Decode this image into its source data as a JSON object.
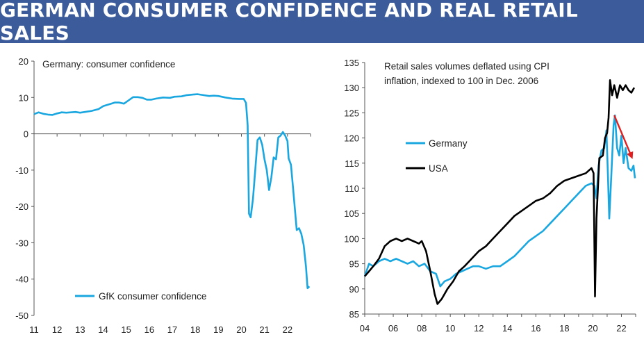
{
  "title": "GERMAN CONSUMER CONFIDENCE AND REAL RETAIL SALES",
  "colors": {
    "banner": "#3b5b9a",
    "germany": "#1aa7e0",
    "usa": "#000000",
    "arrow": "#e02020"
  },
  "chart_data": [
    {
      "type": "line",
      "annotation": "Germany: consumer confidence",
      "ylim": [
        -50,
        20
      ],
      "yticks": [
        "20",
        "10",
        "0",
        "-10",
        "-20",
        "-30",
        "-40",
        "-50"
      ],
      "xlim": [
        2011,
        2023
      ],
      "xticks": [
        "11",
        "12",
        "13",
        "14",
        "15",
        "16",
        "17",
        "18",
        "19",
        "20",
        "21",
        "22"
      ],
      "legend_position": "bottom-center",
      "series": [
        {
          "name": "GfK consumer confidence",
          "color": "#1aa7e0",
          "points": [
            [
              2011.0,
              5.4
            ],
            [
              2011.2,
              5.9
            ],
            [
              2011.4,
              5.5
            ],
            [
              2011.6,
              5.3
            ],
            [
              2011.8,
              5.2
            ],
            [
              2012.0,
              5.6
            ],
            [
              2012.2,
              5.9
            ],
            [
              2012.4,
              5.8
            ],
            [
              2012.6,
              5.9
            ],
            [
              2012.8,
              6.0
            ],
            [
              2013.0,
              5.8
            ],
            [
              2013.2,
              6.0
            ],
            [
              2013.5,
              6.3
            ],
            [
              2013.8,
              6.8
            ],
            [
              2014.0,
              7.6
            ],
            [
              2014.3,
              8.2
            ],
            [
              2014.5,
              8.6
            ],
            [
              2014.7,
              8.6
            ],
            [
              2014.9,
              8.3
            ],
            [
              2015.1,
              9.2
            ],
            [
              2015.3,
              10.1
            ],
            [
              2015.5,
              10.1
            ],
            [
              2015.7,
              9.9
            ],
            [
              2015.9,
              9.4
            ],
            [
              2016.1,
              9.4
            ],
            [
              2016.3,
              9.7
            ],
            [
              2016.6,
              10.0
            ],
            [
              2016.9,
              9.9
            ],
            [
              2017.1,
              10.2
            ],
            [
              2017.4,
              10.3
            ],
            [
              2017.6,
              10.6
            ],
            [
              2017.9,
              10.8
            ],
            [
              2018.1,
              10.9
            ],
            [
              2018.3,
              10.7
            ],
            [
              2018.6,
              10.4
            ],
            [
              2018.8,
              10.5
            ],
            [
              2019.0,
              10.4
            ],
            [
              2019.3,
              10.0
            ],
            [
              2019.6,
              9.7
            ],
            [
              2019.9,
              9.6
            ],
            [
              2020.1,
              9.6
            ],
            [
              2020.2,
              8.5
            ],
            [
              2020.27,
              2.3
            ],
            [
              2020.33,
              -22.0
            ],
            [
              2020.4,
              -23.0
            ],
            [
              2020.5,
              -18.0
            ],
            [
              2020.6,
              -10.0
            ],
            [
              2020.7,
              -1.7
            ],
            [
              2020.8,
              -1.0
            ],
            [
              2020.9,
              -3.0
            ],
            [
              2021.0,
              -7.0
            ],
            [
              2021.1,
              -10.0
            ],
            [
              2021.2,
              -15.5
            ],
            [
              2021.3,
              -12.0
            ],
            [
              2021.4,
              -6.5
            ],
            [
              2021.5,
              -7.0
            ],
            [
              2021.6,
              -1.0
            ],
            [
              2021.7,
              -0.5
            ],
            [
              2021.8,
              0.5
            ],
            [
              2021.9,
              -0.5
            ],
            [
              2022.0,
              -2.0
            ],
            [
              2022.05,
              -6.8
            ],
            [
              2022.15,
              -8.5
            ],
            [
              2022.25,
              -15.5
            ],
            [
              2022.4,
              -26.5
            ],
            [
              2022.5,
              -26.0
            ],
            [
              2022.6,
              -27.5
            ],
            [
              2022.7,
              -30.6
            ],
            [
              2022.8,
              -36.5
            ],
            [
              2022.87,
              -42.5
            ],
            [
              2022.95,
              -42.0
            ]
          ]
        }
      ]
    },
    {
      "type": "line",
      "annotation": "Retail sales volumes deflated using CPI inflation, indexed to 100 in Dec. 2006",
      "ylim": [
        85,
        135
      ],
      "yticks": [
        "135",
        "130",
        "125",
        "120",
        "115",
        "110",
        "105",
        "100",
        "95",
        "90",
        "85"
      ],
      "xlim": [
        2004,
        2023
      ],
      "xticks": [
        "04",
        "06",
        "08",
        "10",
        "12",
        "14",
        "16",
        "18",
        "20",
        "22"
      ],
      "legend_position": "middle-left",
      "series": [
        {
          "name": "Germany",
          "color": "#1aa7e0",
          "points": [
            [
              2004.0,
              92.5
            ],
            [
              2004.3,
              95.0
            ],
            [
              2004.6,
              94.5
            ],
            [
              2005.0,
              95.5
            ],
            [
              2005.4,
              96.0
            ],
            [
              2005.8,
              95.5
            ],
            [
              2006.2,
              96.0
            ],
            [
              2006.6,
              95.5
            ],
            [
              2007.0,
              95.0
            ],
            [
              2007.4,
              95.5
            ],
            [
              2007.8,
              94.5
            ],
            [
              2008.2,
              95.0
            ],
            [
              2008.6,
              93.5
            ],
            [
              2009.0,
              93.0
            ],
            [
              2009.3,
              90.5
            ],
            [
              2009.6,
              91.5
            ],
            [
              2010.0,
              92.0
            ],
            [
              2010.4,
              93.0
            ],
            [
              2010.8,
              93.5
            ],
            [
              2011.2,
              94.0
            ],
            [
              2011.6,
              94.5
            ],
            [
              2012.0,
              94.5
            ],
            [
              2012.5,
              94.0
            ],
            [
              2013.0,
              94.5
            ],
            [
              2013.5,
              94.5
            ],
            [
              2014.0,
              95.5
            ],
            [
              2014.5,
              96.5
            ],
            [
              2015.0,
              98.0
            ],
            [
              2015.5,
              99.5
            ],
            [
              2016.0,
              100.5
            ],
            [
              2016.5,
              101.5
            ],
            [
              2017.0,
              103.0
            ],
            [
              2017.5,
              104.5
            ],
            [
              2018.0,
              106.0
            ],
            [
              2018.5,
              107.5
            ],
            [
              2019.0,
              109.0
            ],
            [
              2019.5,
              110.5
            ],
            [
              2019.9,
              111.0
            ],
            [
              2020.1,
              110.5
            ],
            [
              2020.25,
              108.0
            ],
            [
              2020.4,
              114.5
            ],
            [
              2020.6,
              117.5
            ],
            [
              2020.8,
              118.0
            ],
            [
              2020.95,
              121.5
            ],
            [
              2021.05,
              113.0
            ],
            [
              2021.15,
              104.0
            ],
            [
              2021.3,
              113.0
            ],
            [
              2021.45,
              122.5
            ],
            [
              2021.55,
              124.5
            ],
            [
              2021.7,
              118.0
            ],
            [
              2021.85,
              116.5
            ],
            [
              2022.0,
              120.5
            ],
            [
              2022.15,
              115.0
            ],
            [
              2022.3,
              118.0
            ],
            [
              2022.5,
              114.0
            ],
            [
              2022.7,
              113.5
            ],
            [
              2022.85,
              114.5
            ],
            [
              2022.95,
              112.0
            ]
          ]
        },
        {
          "name": "USA",
          "color": "#000000",
          "points": [
            [
              2004.0,
              92.5
            ],
            [
              2004.3,
              93.5
            ],
            [
              2004.6,
              94.5
            ],
            [
              2005.0,
              96.0
            ],
            [
              2005.4,
              98.5
            ],
            [
              2005.8,
              99.5
            ],
            [
              2006.2,
              100.0
            ],
            [
              2006.6,
              99.5
            ],
            [
              2007.0,
              100.0
            ],
            [
              2007.4,
              99.5
            ],
            [
              2007.8,
              99.0
            ],
            [
              2008.0,
              99.5
            ],
            [
              2008.3,
              97.5
            ],
            [
              2008.6,
              93.5
            ],
            [
              2008.9,
              89.0
            ],
            [
              2009.1,
              87.0
            ],
            [
              2009.4,
              88.0
            ],
            [
              2009.8,
              90.0
            ],
            [
              2010.2,
              91.5
            ],
            [
              2010.6,
              93.5
            ],
            [
              2011.0,
              94.5
            ],
            [
              2011.5,
              96.0
            ],
            [
              2012.0,
              97.5
            ],
            [
              2012.5,
              98.5
            ],
            [
              2013.0,
              100.0
            ],
            [
              2013.5,
              101.5
            ],
            [
              2014.0,
              103.0
            ],
            [
              2014.5,
              104.5
            ],
            [
              2015.0,
              105.5
            ],
            [
              2015.5,
              106.5
            ],
            [
              2016.0,
              107.5
            ],
            [
              2016.5,
              108.0
            ],
            [
              2017.0,
              109.0
            ],
            [
              2017.5,
              110.5
            ],
            [
              2018.0,
              111.5
            ],
            [
              2018.5,
              112.0
            ],
            [
              2019.0,
              112.5
            ],
            [
              2019.5,
              113.0
            ],
            [
              2019.9,
              114.0
            ],
            [
              2020.05,
              113.0
            ],
            [
              2020.15,
              88.5
            ],
            [
              2020.25,
              104.0
            ],
            [
              2020.45,
              116.0
            ],
            [
              2020.7,
              116.5
            ],
            [
              2020.85,
              120.0
            ],
            [
              2021.0,
              121.0
            ],
            [
              2021.1,
              124.0
            ],
            [
              2021.2,
              131.5
            ],
            [
              2021.35,
              128.5
            ],
            [
              2021.5,
              130.5
            ],
            [
              2021.7,
              128.0
            ],
            [
              2021.9,
              130.5
            ],
            [
              2022.1,
              129.5
            ],
            [
              2022.3,
              130.5
            ],
            [
              2022.5,
              129.5
            ],
            [
              2022.7,
              129.0
            ],
            [
              2022.9,
              130.0
            ]
          ]
        }
      ],
      "arrow": {
        "from": [
          2021.5,
          124.5
        ],
        "to": [
          2023.0,
          115.5
        ]
      }
    }
  ]
}
